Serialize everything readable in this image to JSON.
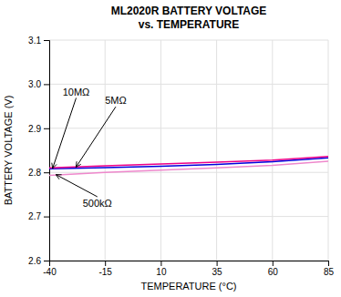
{
  "chart_data": {
    "type": "line",
    "title": "ML2020R BATTERY VOLTAGE",
    "subtitle": "vs. TEMPERATURE",
    "x_label": "TEMPERATURE (°C)",
    "y_label": "BATTERY VOLTAGE (V)",
    "x": [
      -40,
      -15,
      10,
      35,
      60,
      85
    ],
    "series": [
      {
        "color": "#ee88cc",
        "values": [
          2.793,
          2.8,
          2.805,
          2.81,
          2.816,
          2.825
        ]
      },
      {
        "color": "#0000dd",
        "values": [
          2.808,
          2.811,
          2.814,
          2.818,
          2.824,
          2.833
        ]
      },
      {
        "color": "#ee0088",
        "values": [
          2.81,
          2.815,
          2.819,
          2.823,
          2.828,
          2.836
        ]
      }
    ],
    "xlim": [
      -40,
      85
    ],
    "ylim": [
      2.6,
      3.1
    ],
    "xticks": [
      -40,
      -15,
      10,
      35,
      60,
      85
    ],
    "yticks": [
      2.6,
      2.7,
      2.8,
      2.9,
      {
        "value": 3.0,
        "label": "3.0"
      },
      3.1
    ],
    "grid": true,
    "annotations": [
      {
        "text": "10MΩ",
        "x": -34,
        "y": 2.975,
        "arrow_x": -38.5,
        "arrow_y": 2.809
      },
      {
        "text": "5MΩ",
        "x": -15,
        "y": 2.955,
        "arrow_x": -28,
        "arrow_y": 2.812
      },
      {
        "text": "500kΩ",
        "x": -25,
        "y": 2.722,
        "arrow_x": -37,
        "arrow_y": 2.795
      }
    ]
  }
}
